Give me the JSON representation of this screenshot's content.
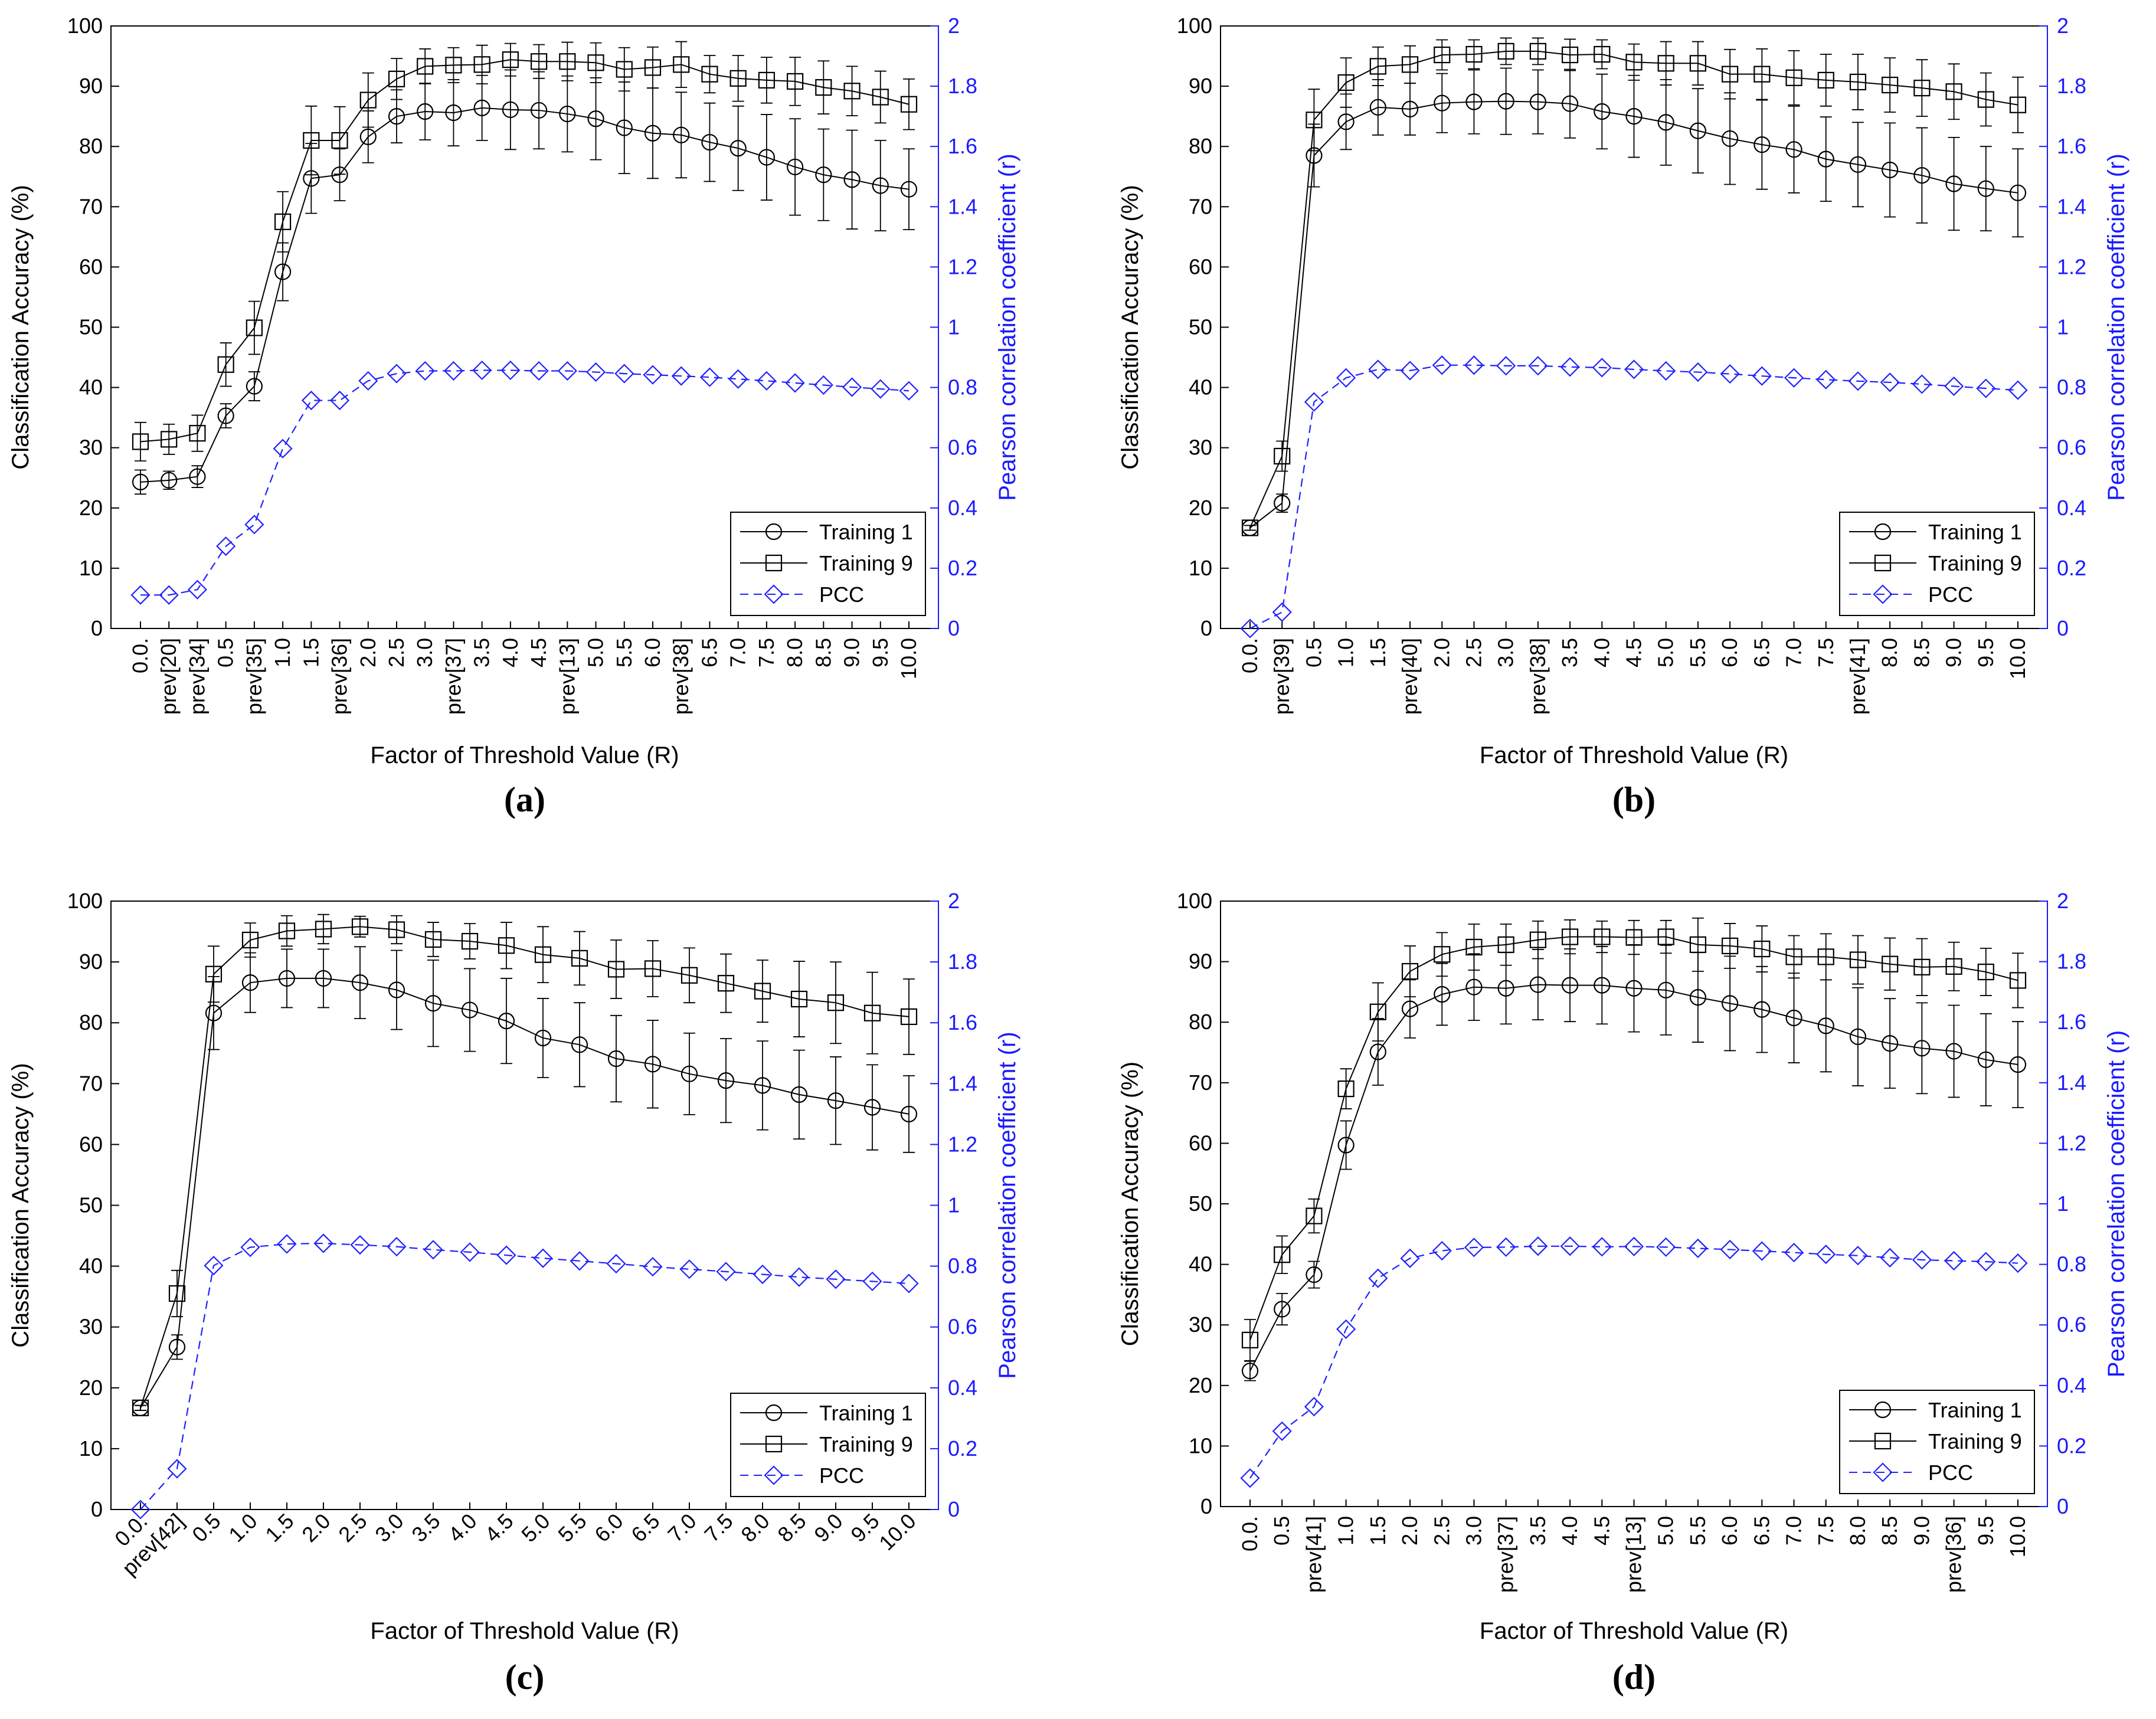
{
  "figure": {
    "colors": {
      "axis": "#000000",
      "training": "#000000",
      "pcc": "#2020ff",
      "right_axis": "#1a1aff"
    },
    "marker_names": {
      "training1": "circle",
      "training9": "square",
      "pcc": "diamond"
    }
  },
  "chart_data": [
    {
      "type": "line",
      "panel_label": "(a)",
      "xlabel": "Factor of Threshold Value (R)",
      "ylabel": "Classification Accuracy (%)",
      "y2label": "Pearson correlation coefficient (r)",
      "ylim": [
        0,
        100
      ],
      "y2lim": [
        0,
        2
      ],
      "yticks": [
        "0",
        "10",
        "20",
        "30",
        "40",
        "50",
        "60",
        "70",
        "80",
        "90",
        "100"
      ],
      "y2ticks": [
        "0",
        "0.2",
        "0.4",
        "0.6",
        "0.8",
        "1",
        "1.2",
        "1.4",
        "1.6",
        "1.8",
        "2"
      ],
      "legend": [
        "Training 1",
        "Training 9",
        "PCC"
      ],
      "legend_position": "bottom-right",
      "categories": [
        "0.0.",
        "prev[20]",
        "prev[34]",
        "0.5",
        "prev[35]",
        "1.0",
        "1.5",
        "prev[36]",
        "2.0",
        "2.5",
        "3.0",
        "prev[37]",
        "3.5",
        "4.0",
        "4.5",
        "prev[13]",
        "5.0",
        "5.5",
        "6.0",
        "prev[38]",
        "6.5",
        "7.0",
        "7.5",
        "8.0",
        "8.5",
        "9.0",
        "9.5",
        "10.0"
      ],
      "series": [
        {
          "name": "Training 1",
          "marker": "circle",
          "values": [
            24.3,
            24.6,
            25.2,
            35.3,
            40.2,
            59.2,
            74.7,
            75.3,
            81.6,
            85.0,
            85.8,
            85.6,
            86.4,
            86.1,
            86.0,
            85.4,
            84.6,
            83.1,
            82.2,
            81.9,
            80.7,
            79.7,
            78.2,
            76.6,
            75.3,
            74.5,
            73.5,
            72.9
          ],
          "errors": [
            2.0,
            1.5,
            1.8,
            2.0,
            2.4,
            4.8,
            5.8,
            4.3,
            4.3,
            4.4,
            4.7,
            5.5,
            5.4,
            6.6,
            6.4,
            6.3,
            6.8,
            7.6,
            7.5,
            7.1,
            6.5,
            7.0,
            7.1,
            8.0,
            7.6,
            8.2,
            7.5,
            6.7
          ]
        },
        {
          "name": "Training 9",
          "marker": "square",
          "values": [
            31.0,
            31.4,
            32.4,
            43.8,
            49.9,
            67.5,
            81.0,
            81.0,
            87.7,
            91.2,
            93.3,
            93.5,
            93.6,
            94.4,
            94.1,
            94.1,
            93.9,
            92.8,
            93.1,
            93.6,
            92.0,
            91.3,
            91.0,
            90.8,
            89.8,
            89.2,
            88.2,
            87.0
          ],
          "errors": [
            3.2,
            2.5,
            3.0,
            3.6,
            4.4,
            5.0,
            5.7,
            5.6,
            4.5,
            3.4,
            2.9,
            2.9,
            3.2,
            2.7,
            2.8,
            3.2,
            3.3,
            3.6,
            3.4,
            3.8,
            3.1,
            3.8,
            3.8,
            4.0,
            4.4,
            4.1,
            4.3,
            4.2
          ]
        },
        {
          "name": "PCC",
          "marker": "diamond",
          "axis": "right",
          "values": [
            0.111,
            0.111,
            0.129,
            0.273,
            0.345,
            0.597,
            0.757,
            0.757,
            0.822,
            0.846,
            0.855,
            0.855,
            0.857,
            0.857,
            0.855,
            0.855,
            0.851,
            0.846,
            0.842,
            0.838,
            0.834,
            0.828,
            0.822,
            0.815,
            0.808,
            0.801,
            0.795,
            0.789
          ]
        }
      ]
    },
    {
      "type": "line",
      "panel_label": "(b)",
      "xlabel": "Factor of Threshold Value (R)",
      "ylabel": "Classification Accuracy (%)",
      "y2label": "Pearson correlation coefficient (r)",
      "ylim": [
        0,
        100
      ],
      "y2lim": [
        0,
        2
      ],
      "yticks": [
        "0",
        "10",
        "20",
        "30",
        "40",
        "50",
        "60",
        "70",
        "80",
        "90",
        "100"
      ],
      "y2ticks": [
        "0",
        "0.2",
        "0.4",
        "0.6",
        "0.8",
        "1",
        "1.2",
        "1.4",
        "1.6",
        "1.8",
        "2"
      ],
      "legend": [
        "Training 1",
        "Training 9",
        "PCC"
      ],
      "legend_position": "bottom-right",
      "categories": [
        "0.0.",
        "prev[39]",
        "0.5",
        "1.0",
        "1.5",
        "prev[40]",
        "2.0",
        "2.5",
        "3.0",
        "prev[38]",
        "3.5",
        "4.0",
        "4.5",
        "5.0",
        "5.5",
        "6.0",
        "6.5",
        "7.0",
        "7.5",
        "prev[41]",
        "8.0",
        "8.5",
        "9.0",
        "9.5",
        "10.0"
      ],
      "series": [
        {
          "name": "Training 1",
          "marker": "circle",
          "values": [
            16.7,
            20.8,
            78.5,
            84.1,
            86.5,
            86.2,
            87.2,
            87.4,
            87.5,
            87.4,
            87.1,
            85.8,
            85.0,
            84.0,
            82.6,
            81.3,
            80.3,
            79.5,
            77.9,
            77.0,
            76.1,
            75.2,
            73.8,
            73.0,
            72.3
          ],
          "errors": [
            0.4,
            1.5,
            5.2,
            4.6,
            4.6,
            4.3,
            4.9,
            5.3,
            5.5,
            5.3,
            5.7,
            6.2,
            6.8,
            7.1,
            7.0,
            7.6,
            7.4,
            7.2,
            7.0,
            7.0,
            7.8,
            7.9,
            7.7,
            7.0,
            7.3
          ]
        },
        {
          "name": "Training 9",
          "marker": "square",
          "values": [
            16.7,
            28.6,
            84.4,
            90.6,
            93.3,
            93.6,
            95.2,
            95.3,
            95.8,
            95.8,
            95.2,
            95.3,
            94.0,
            93.8,
            93.8,
            92.0,
            92.0,
            91.4,
            91.0,
            90.7,
            90.2,
            89.7,
            89.1,
            87.8,
            86.9
          ],
          "errors": [
            0.4,
            2.5,
            5.1,
            4.1,
            3.2,
            3.1,
            2.5,
            2.4,
            2.2,
            2.2,
            2.6,
            2.4,
            3.0,
            3.6,
            3.6,
            4.1,
            4.2,
            4.5,
            4.3,
            4.6,
            4.5,
            4.7,
            4.6,
            4.4,
            4.6
          ]
        },
        {
          "name": "PCC",
          "marker": "diamond",
          "axis": "right",
          "values": [
            0.0,
            0.054,
            0.752,
            0.832,
            0.86,
            0.856,
            0.874,
            0.874,
            0.872,
            0.872,
            0.868,
            0.866,
            0.86,
            0.855,
            0.851,
            0.845,
            0.838,
            0.832,
            0.826,
            0.821,
            0.817,
            0.811,
            0.804,
            0.797,
            0.791
          ]
        }
      ]
    },
    {
      "type": "line",
      "panel_label": "(c)",
      "xlabel": "Factor of Threshold Value (R)",
      "ylabel": "Classification Accuracy (%)",
      "y2label": "Pearson correlation coefficient (r)",
      "ylim": [
        0,
        100
      ],
      "y2lim": [
        0,
        2
      ],
      "yticks": [
        "0",
        "10",
        "20",
        "30",
        "40",
        "50",
        "60",
        "70",
        "80",
        "90",
        "100"
      ],
      "y2ticks": [
        "0",
        "0.2",
        "0.4",
        "0.6",
        "0.8",
        "1",
        "1.2",
        "1.4",
        "1.6",
        "1.8",
        "2"
      ],
      "legend": [
        "Training 1",
        "Training 9",
        "PCC"
      ],
      "legend_position": "bottom-right",
      "x_tick_rotation": "diagonal",
      "categories": [
        "0.0.",
        "prev[42]",
        "0.5",
        "1.0",
        "1.5",
        "2.0",
        "2.5",
        "3.0",
        "3.5",
        "4.0",
        "4.5",
        "5.0",
        "5.5",
        "6.0",
        "6.5",
        "7.0",
        "7.5",
        "8.0",
        "8.5",
        "9.0",
        "9.5",
        "10.0"
      ],
      "series": [
        {
          "name": "Training 1",
          "marker": "circle",
          "values": [
            16.7,
            26.7,
            81.6,
            86.6,
            87.3,
            87.3,
            86.6,
            85.4,
            83.2,
            82.1,
            80.3,
            77.5,
            76.4,
            74.1,
            73.2,
            71.6,
            70.5,
            69.7,
            68.2,
            67.2,
            66.1,
            65.0
          ],
          "errors": [
            0.4,
            2.0,
            6.0,
            4.9,
            4.8,
            4.8,
            5.9,
            6.5,
            7.1,
            6.8,
            7.0,
            6.5,
            6.9,
            7.1,
            7.2,
            6.7,
            6.9,
            7.3,
            7.3,
            7.2,
            7.0,
            6.3
          ]
        },
        {
          "name": "Training 9",
          "marker": "square",
          "values": [
            16.7,
            35.5,
            88.0,
            93.6,
            95.1,
            95.4,
            95.8,
            95.3,
            93.7,
            93.4,
            92.7,
            91.2,
            90.6,
            88.8,
            88.9,
            87.8,
            86.5,
            85.2,
            83.9,
            83.3,
            81.6,
            81.0
          ],
          "errors": [
            0.4,
            3.8,
            4.6,
            2.8,
            2.5,
            2.4,
            1.7,
            2.3,
            2.8,
            2.9,
            3.8,
            4.6,
            4.4,
            4.8,
            4.6,
            4.5,
            4.8,
            5.1,
            6.2,
            6.7,
            6.7,
            6.2
          ]
        },
        {
          "name": "PCC",
          "marker": "diamond",
          "axis": "right",
          "values": [
            0.0,
            0.134,
            0.802,
            0.862,
            0.873,
            0.875,
            0.87,
            0.864,
            0.854,
            0.846,
            0.836,
            0.826,
            0.817,
            0.808,
            0.798,
            0.79,
            0.782,
            0.773,
            0.764,
            0.757,
            0.75,
            0.743
          ]
        }
      ]
    },
    {
      "type": "line",
      "panel_label": "(d)",
      "xlabel": "Factor of Threshold Value (R)",
      "ylabel": "Classification Accuracy (%)",
      "y2label": "Pearson correlation coefficient (r)",
      "ylim": [
        0,
        100
      ],
      "y2lim": [
        0,
        2
      ],
      "yticks": [
        "0",
        "10",
        "20",
        "30",
        "40",
        "50",
        "60",
        "70",
        "80",
        "90",
        "100"
      ],
      "y2ticks": [
        "0",
        "0.2",
        "0.4",
        "0.6",
        "0.8",
        "1",
        "1.2",
        "1.4",
        "1.6",
        "1.8",
        "2"
      ],
      "legend": [
        "Training 1",
        "Training 9",
        "PCC"
      ],
      "legend_position": "bottom-right",
      "categories": [
        "0.0.",
        "0.5",
        "prev[41]",
        "1.0",
        "1.5",
        "2.0",
        "2.5",
        "3.0",
        "prev[37]",
        "3.5",
        "4.0",
        "4.5",
        "prev[13]",
        "5.0",
        "5.5",
        "6.0",
        "6.5",
        "7.0",
        "7.5",
        "8.0",
        "8.5",
        "9.0",
        "prev[36]",
        "9.5",
        "10.0"
      ],
      "series": [
        {
          "name": "Training 1",
          "marker": "circle",
          "values": [
            22.4,
            32.6,
            38.3,
            59.7,
            75.1,
            82.2,
            84.6,
            85.8,
            85.6,
            86.2,
            86.1,
            86.1,
            85.6,
            85.3,
            84.1,
            83.1,
            82.1,
            80.7,
            79.4,
            77.6,
            76.5,
            75.7,
            75.2,
            73.8,
            73.0
          ],
          "errors": [
            1.6,
            2.6,
            2.2,
            4.0,
            5.5,
            4.8,
            5.1,
            5.5,
            5.9,
            5.8,
            6.0,
            6.4,
            7.2,
            7.4,
            7.4,
            7.8,
            7.1,
            7.4,
            7.6,
            8.1,
            7.4,
            7.5,
            7.6,
            7.6,
            7.1
          ]
        },
        {
          "name": "Training 9",
          "marker": "square",
          "values": [
            27.5,
            41.6,
            48.0,
            69.0,
            81.7,
            88.4,
            91.2,
            92.4,
            92.8,
            93.6,
            94.1,
            94.1,
            94.0,
            94.1,
            92.8,
            92.6,
            92.1,
            90.8,
            90.8,
            90.3,
            89.6,
            89.1,
            89.2,
            88.3,
            86.9
          ],
          "errors": [
            3.4,
            3.1,
            2.8,
            3.3,
            4.8,
            4.2,
            3.6,
            3.8,
            3.4,
            3.1,
            2.8,
            2.6,
            2.8,
            2.7,
            4.4,
            3.7,
            3.8,
            3.5,
            3.8,
            4.0,
            4.3,
            4.7,
            4.0,
            3.9,
            4.5
          ]
        },
        {
          "name": "PCC",
          "marker": "diamond",
          "axis": "right",
          "values": [
            0.094,
            0.249,
            0.33,
            0.586,
            0.754,
            0.82,
            0.845,
            0.856,
            0.857,
            0.86,
            0.86,
            0.858,
            0.859,
            0.857,
            0.853,
            0.849,
            0.844,
            0.839,
            0.833,
            0.829,
            0.822,
            0.815,
            0.812,
            0.809,
            0.804
          ]
        }
      ]
    }
  ]
}
